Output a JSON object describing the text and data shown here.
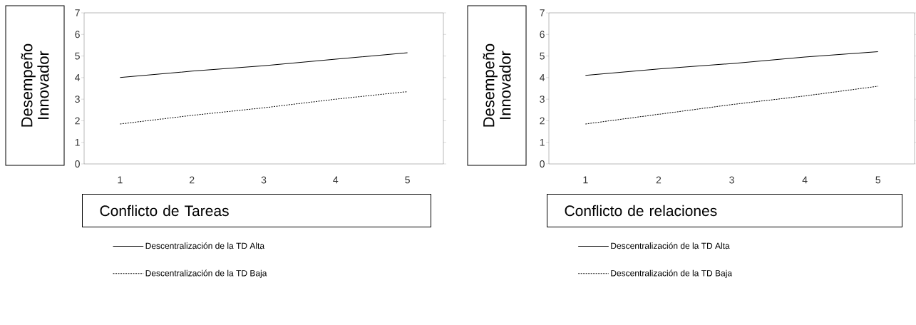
{
  "chart_data": [
    {
      "type": "line",
      "categories": [
        "1",
        "2",
        "3",
        "4",
        "5"
      ],
      "ylim": [
        0,
        7
      ],
      "yticks": [
        0,
        1,
        2,
        3,
        4,
        5,
        6,
        7
      ],
      "ylabel": "Desempeño Innovador",
      "xlabel": "Conflicto de Tareas",
      "legend": "bottom",
      "grid": false,
      "series": [
        {
          "name": "Descentralización de la TD Alta",
          "color": "#000000",
          "line_style": "solid",
          "values": [
            4.0,
            4.3,
            4.55,
            4.85,
            5.15
          ]
        },
        {
          "name": "Descentralización de la TD Baja",
          "color": "#000000",
          "line_style": "dashed",
          "values": [
            1.85,
            2.25,
            2.6,
            3.0,
            3.35
          ]
        }
      ]
    },
    {
      "type": "line",
      "categories": [
        "1",
        "2",
        "3",
        "4",
        "5"
      ],
      "ylim": [
        0,
        7
      ],
      "yticks": [
        0,
        1,
        2,
        3,
        4,
        5,
        6,
        7
      ],
      "ylabel": "Desempeño Innovador",
      "xlabel": "Conflicto de relaciones",
      "legend": "bottom",
      "grid": false,
      "series": [
        {
          "name": "Descentralización de la TD Alta",
          "color": "#000000",
          "line_style": "solid",
          "values": [
            4.1,
            4.4,
            4.65,
            4.95,
            5.2
          ]
        },
        {
          "name": "Descentralización de la TD Baja",
          "color": "#000000",
          "line_style": "dashed",
          "values": [
            1.85,
            2.3,
            2.75,
            3.15,
            3.6
          ]
        }
      ]
    }
  ]
}
